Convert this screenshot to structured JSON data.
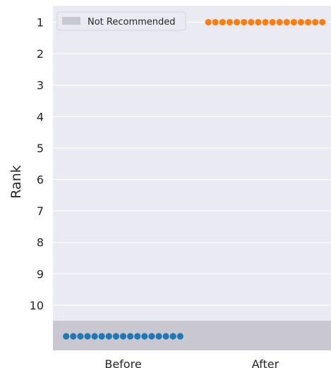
{
  "chart_data": {
    "type": "scatter",
    "style": "swarm-strip",
    "ylabel": "Rank",
    "xlabel": "",
    "title": "",
    "categories": [
      "Before",
      "After"
    ],
    "y_ticks": [
      "1",
      "2",
      "3",
      "4",
      "5",
      "6",
      "7",
      "8",
      "9",
      "10"
    ],
    "y_inverted": true,
    "grid": true,
    "not_recommended_band": {
      "label": "Not Recommended",
      "color": "#c9c8d0"
    },
    "series": [
      {
        "category": "Before",
        "color": "#1f77b4",
        "count": 17,
        "value": "Not Recommended"
      },
      {
        "category": "After",
        "color": "#ff7f0e",
        "count": 17,
        "value": 1
      }
    ],
    "legend": {
      "placement": "top-left",
      "entries": [
        "Not Recommended"
      ]
    },
    "background": "#eaeaf2"
  }
}
